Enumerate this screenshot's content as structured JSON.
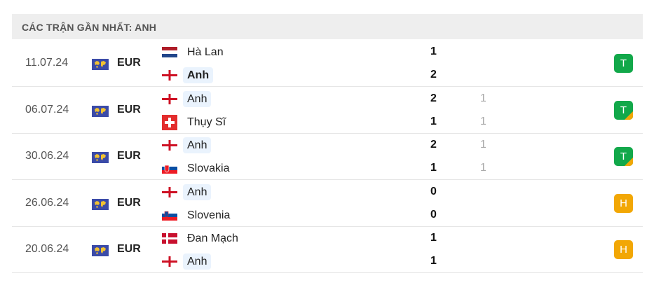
{
  "header": {
    "title": "CÁC TRẬN GẦN NHẤT: ANH"
  },
  "colors": {
    "win": "#12a84a",
    "draw": "#f2a705",
    "highlight": "#eaf3fd"
  },
  "matches": [
    {
      "date": "11.07.24",
      "competition": "EUR",
      "home": {
        "name": "Hà Lan",
        "flag": "netherlands",
        "score": "1",
        "pen": ""
      },
      "away": {
        "name": "Anh",
        "flag": "england",
        "score": "2",
        "pen": ""
      },
      "result": "T",
      "result_type": "win",
      "extra_time": false
    },
    {
      "date": "06.07.24",
      "competition": "EUR",
      "home": {
        "name": "Anh",
        "flag": "england",
        "score": "2",
        "pen": "1"
      },
      "away": {
        "name": "Thụy Sĩ",
        "flag": "switzerland",
        "score": "1",
        "pen": "1"
      },
      "result": "T",
      "result_type": "win",
      "extra_time": true
    },
    {
      "date": "30.06.24",
      "competition": "EUR",
      "home": {
        "name": "Anh",
        "flag": "england",
        "score": "2",
        "pen": "1"
      },
      "away": {
        "name": "Slovakia",
        "flag": "slovakia",
        "score": "1",
        "pen": "1"
      },
      "result": "T",
      "result_type": "win",
      "extra_time": true
    },
    {
      "date": "26.06.24",
      "competition": "EUR",
      "home": {
        "name": "Anh",
        "flag": "england",
        "score": "0",
        "pen": ""
      },
      "away": {
        "name": "Slovenia",
        "flag": "slovenia",
        "score": "0",
        "pen": ""
      },
      "result": "H",
      "result_type": "draw",
      "extra_time": false
    },
    {
      "date": "20.06.24",
      "competition": "EUR",
      "home": {
        "name": "Đan Mạch",
        "flag": "denmark",
        "score": "1",
        "pen": ""
      },
      "away": {
        "name": "Anh",
        "flag": "england",
        "score": "1",
        "pen": ""
      },
      "result": "H",
      "result_type": "draw",
      "extra_time": false
    }
  ]
}
